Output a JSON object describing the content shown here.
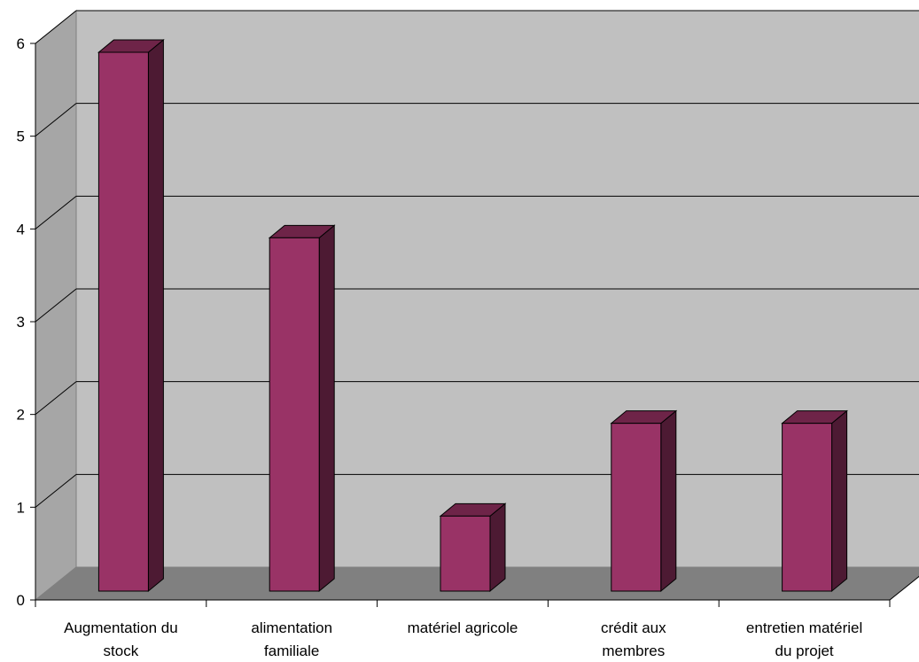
{
  "chart_data": {
    "type": "bar",
    "title": "",
    "xlabel": "",
    "ylabel": "",
    "categories": [
      [
        "Augmentation du",
        "stock"
      ],
      [
        "alimentation",
        "familiale"
      ],
      [
        "matériel agricole"
      ],
      [
        "crédit aux",
        "membres"
      ],
      [
        "entretien matériel",
        "du projet"
      ]
    ],
    "values": [
      6,
      4,
      1,
      2,
      2
    ],
    "ylim": [
      0,
      6
    ],
    "yticks": [
      "0",
      "1",
      "2",
      "3",
      "4",
      "5",
      "6"
    ],
    "grid": true,
    "legend": "none",
    "style": "3d-column",
    "colors": {
      "bar_front": "#993366",
      "bar_top": "#6e2448",
      "bar_side": "#4d1a33",
      "wall": "#c0c0c0",
      "floor": "#808080",
      "side_wall": "#a6a6a6"
    }
  }
}
